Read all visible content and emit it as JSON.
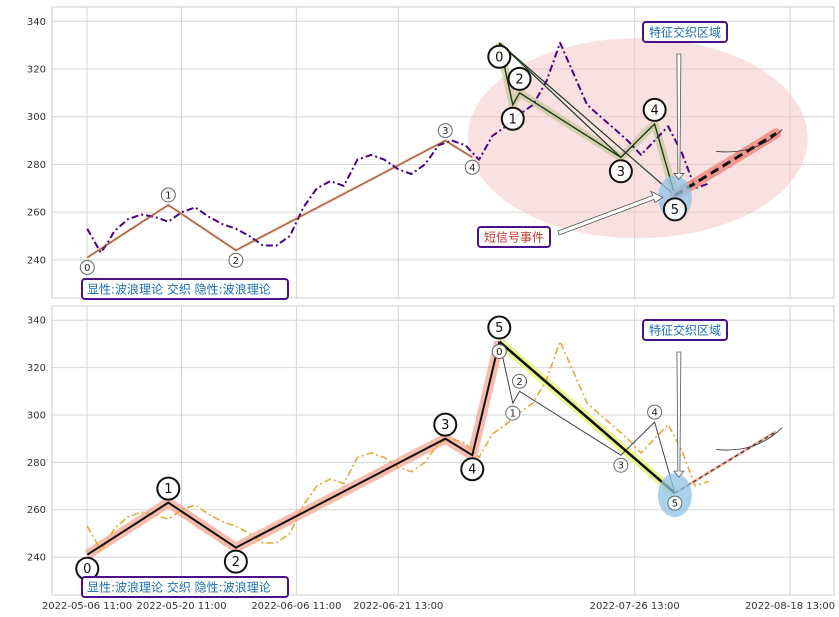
{
  "chart_data": [
    {
      "type": "line",
      "panel": "top",
      "ylim": [
        224,
        346
      ],
      "yticks": [
        240,
        260,
        280,
        300,
        320,
        340
      ],
      "grid": true,
      "series": [
        {
          "style": "dash-dot",
          "color": "#4b0082",
          "x": [
            "2022-05-06",
            "2022-05-07",
            "2022-05-08",
            "2022-05-09",
            "2022-05-10",
            "2022-05-12",
            "2022-05-14",
            "2022-05-16",
            "2022-05-18",
            "2022-05-20",
            "2022-05-22",
            "2022-05-24",
            "2022-05-26",
            "2022-05-28",
            "2022-05-30",
            "2022-06-01",
            "2022-06-03",
            "2022-06-05",
            "2022-06-07",
            "2022-06-09",
            "2022-06-11",
            "2022-06-13",
            "2022-06-15",
            "2022-06-17",
            "2022-06-19",
            "2022-06-21",
            "2022-06-23",
            "2022-06-25",
            "2022-06-27",
            "2022-06-29",
            "2022-07-01",
            "2022-07-03",
            "2022-07-05",
            "2022-07-07",
            "2022-07-09",
            "2022-07-11",
            "2022-07-13",
            "2022-07-15",
            "2022-07-17",
            "2022-07-19",
            "2022-07-21",
            "2022-07-23",
            "2022-07-25",
            "2022-07-27",
            "2022-07-29",
            "2022-07-31",
            "2022-08-02",
            "2022-08-04",
            "2022-08-06"
          ],
          "y": [
            253,
            248,
            243,
            247,
            252,
            257,
            259,
            258,
            256,
            260,
            262,
            258,
            255,
            253,
            250,
            246,
            246,
            250,
            262,
            270,
            273,
            271,
            282,
            284,
            282,
            278,
            276,
            280,
            288,
            290,
            288,
            282,
            292,
            296,
            301,
            305,
            315,
            331,
            318,
            305,
            300,
            295,
            290,
            284,
            290,
            296,
            285,
            270,
            272
          ]
        }
      ],
      "waves": {
        "small": [
          {
            "label": "0",
            "x": "2022-05-06",
            "y": 241
          },
          {
            "label": "1",
            "x": "2022-05-18",
            "y": 263
          },
          {
            "label": "2",
            "x": "2022-05-28",
            "y": 244
          },
          {
            "label": "3",
            "x": "2022-06-28",
            "y": 290
          },
          {
            "label": "4",
            "x": "2022-07-02",
            "y": 283
          }
        ],
        "big": [
          {
            "label": "0",
            "x": "2022-07-06",
            "y": 331
          },
          {
            "label": "1",
            "x": "2022-07-08",
            "y": 305
          },
          {
            "label": "2",
            "x": "2022-07-09",
            "y": 310
          },
          {
            "label": "3",
            "x": "2022-07-24",
            "y": 283
          },
          {
            "label": "4",
            "x": "2022-07-29",
            "y": 297
          },
          {
            "label": "5",
            "x": "2022-08-01",
            "y": 267
          }
        ],
        "projection": {
          "x": [
            "2022-08-01",
            "2022-08-16"
          ],
          "y": [
            267,
            293
          ]
        }
      },
      "annotations": {
        "feature_zone": "特征交织区域",
        "short_signal": "短信号事件",
        "legend": "显性:波浪理论 交织 隐性:波浪理论"
      }
    },
    {
      "type": "line",
      "panel": "bottom",
      "ylim": [
        224,
        346
      ],
      "yticks": [
        240,
        260,
        280,
        300,
        320,
        340
      ],
      "grid": true,
      "xticks": [
        "2022-05-06 11:00",
        "2022-05-20 11:00",
        "2022-06-06 11:00",
        "2022-06-21 13:00",
        "2022-07-26 13:00",
        "2022-08-18 13:00"
      ],
      "series": [
        {
          "style": "dash-dot",
          "color": "#e8a838",
          "x": [
            "2022-05-06",
            "2022-05-07",
            "2022-05-08",
            "2022-05-09",
            "2022-05-10",
            "2022-05-12",
            "2022-05-14",
            "2022-05-16",
            "2022-05-18",
            "2022-05-20",
            "2022-05-22",
            "2022-05-24",
            "2022-05-26",
            "2022-05-28",
            "2022-05-30",
            "2022-06-01",
            "2022-06-03",
            "2022-06-05",
            "2022-06-07",
            "2022-06-09",
            "2022-06-11",
            "2022-06-13",
            "2022-06-15",
            "2022-06-17",
            "2022-06-19",
            "2022-06-21",
            "2022-06-23",
            "2022-06-25",
            "2022-06-27",
            "2022-06-29",
            "2022-07-01",
            "2022-07-03",
            "2022-07-05",
            "2022-07-07",
            "2022-07-09",
            "2022-07-11",
            "2022-07-13",
            "2022-07-15",
            "2022-07-17",
            "2022-07-19",
            "2022-07-21",
            "2022-07-23",
            "2022-07-25",
            "2022-07-27",
            "2022-07-29",
            "2022-07-31",
            "2022-08-02",
            "2022-08-04",
            "2022-08-06"
          ],
          "y": [
            253,
            248,
            243,
            247,
            252,
            257,
            259,
            258,
            256,
            260,
            262,
            258,
            255,
            253,
            250,
            246,
            246,
            250,
            262,
            270,
            273,
            271,
            282,
            284,
            282,
            278,
            276,
            280,
            288,
            290,
            288,
            282,
            292,
            296,
            301,
            305,
            315,
            331,
            318,
            305,
            300,
            295,
            290,
            284,
            290,
            296,
            285,
            270,
            272
          ]
        }
      ],
      "waves": {
        "big": [
          {
            "label": "0",
            "x": "2022-05-06",
            "y": 241
          },
          {
            "label": "1",
            "x": "2022-05-18",
            "y": 263
          },
          {
            "label": "2",
            "x": "2022-05-28",
            "y": 244
          },
          {
            "label": "3",
            "x": "2022-06-28",
            "y": 290
          },
          {
            "label": "4",
            "x": "2022-07-02",
            "y": 283
          },
          {
            "label": "5",
            "x": "2022-07-06",
            "y": 331
          }
        ],
        "small": [
          {
            "label": "0",
            "x": "2022-07-06",
            "y": 331
          },
          {
            "label": "1",
            "x": "2022-07-08",
            "y": 305
          },
          {
            "label": "2",
            "x": "2022-07-09",
            "y": 310
          },
          {
            "label": "3",
            "x": "2022-07-24",
            "y": 283
          },
          {
            "label": "4",
            "x": "2022-07-29",
            "y": 297
          },
          {
            "label": "5",
            "x": "2022-08-01",
            "y": 267
          }
        ],
        "projection": {
          "x": [
            "2022-08-01",
            "2022-08-16"
          ],
          "y": [
            267,
            293
          ]
        }
      },
      "annotations": {
        "feature_zone": "特征交织区域",
        "legend": "显性:波浪理论 交织 隐性:波浪理论"
      }
    }
  ]
}
